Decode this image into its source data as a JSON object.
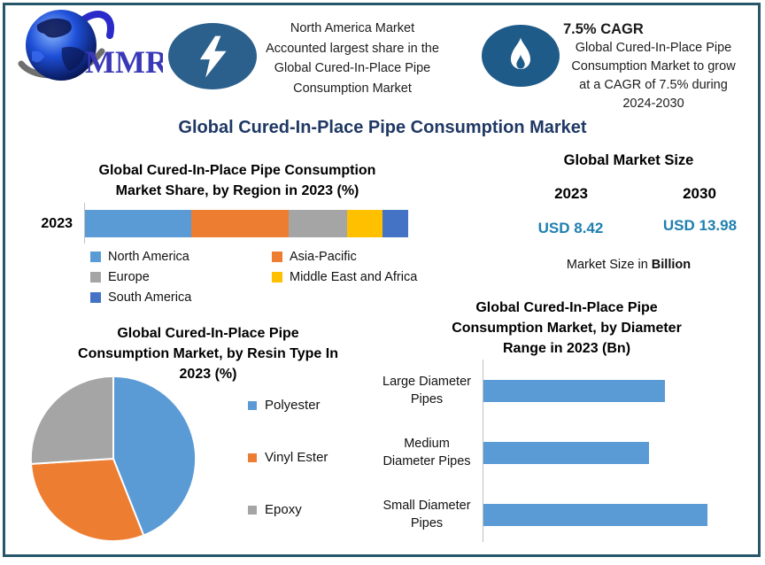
{
  "page_title": "Global Cured-In-Place Pipe Consumption Market",
  "header": {
    "logo_text": "MMR",
    "logo_icon": "globe-swoosh-logo",
    "highlight_left": {
      "icon": "lightning-icon",
      "text": "North America Market\nAccounted largest share in the\nGlobal Cured-In-Place Pipe\nConsumption Market"
    },
    "highlight_right": {
      "icon": "flame-icon",
      "title": "7.5% CAGR",
      "text": "Global Cured-In-Place Pipe\nConsumption Market to grow\nat a CAGR of 7.5% during\n2024-2030"
    }
  },
  "market_size": {
    "title": "Global Market Size",
    "year_start": "2023",
    "year_end": "2030",
    "value_start": "USD 8.42",
    "value_end": "USD 13.98",
    "note_prefix": "Market Size in ",
    "note_bold": "Billion",
    "value_color": "#1E7FB0"
  },
  "colors": {
    "frame_border": "#25566A",
    "title_navy": "#1F3864",
    "badge_blue_lightning": "#2B608D",
    "badge_blue_flame": "#1F5B89",
    "logo_text_blue": "#3939B8"
  },
  "chart_data": [
    {
      "id": "region_share",
      "type": "bar",
      "subtype": "stacked-horizontal",
      "title": "Global Cured-In-Place Pipe Consumption\nMarket Share, by Region in 2023 (%)",
      "categories": [
        "2023"
      ],
      "series": [
        {
          "name": "North America",
          "value": 33,
          "color": "#5B9BD5"
        },
        {
          "name": "Asia-Pacific",
          "value": 30,
          "color": "#ED7D31"
        },
        {
          "name": "Europe",
          "value": 18,
          "color": "#A5A5A5"
        },
        {
          "name": "Middle East and Africa",
          "value": 11,
          "color": "#FFC000"
        },
        {
          "name": "South America",
          "value": 8,
          "color": "#4472C4"
        }
      ],
      "value_labels_shown": false,
      "legend_position": "bottom",
      "note": "segment sizes estimated from bar widths (%)"
    },
    {
      "id": "resin_type",
      "type": "pie",
      "title": "Global Cured-In-Place Pipe\nConsumption Market, by Resin Type In\n2023 (%)",
      "slices": [
        {
          "name": "Polyester",
          "value": 44,
          "color": "#5B9BD5"
        },
        {
          "name": "Vinyl Ester",
          "value": 30,
          "color": "#ED7D31"
        },
        {
          "name": "Epoxy",
          "value": 26,
          "color": "#A5A5A5"
        }
      ],
      "start_angle_deg": 0,
      "direction": "clockwise",
      "value_labels_shown": false,
      "legend_position": "right",
      "note": "slice sizes estimated from arc angles (%)"
    },
    {
      "id": "diameter_range",
      "type": "bar",
      "subtype": "horizontal",
      "title": "Global Cured-In-Place Pipe\nConsumption Market, by Diameter\nRange in 2023 (Bn)",
      "categories": [
        "Large Diameter\nPipes",
        "Medium\nDiameter Pipes",
        "Small Diameter\nPipes"
      ],
      "values_relative_to_max": [
        0.81,
        0.74,
        1.0
      ],
      "bar_color": "#5B9BD5",
      "value_labels_shown": false,
      "note": "no numeric labels shown; lengths relative to longest bar"
    }
  ]
}
